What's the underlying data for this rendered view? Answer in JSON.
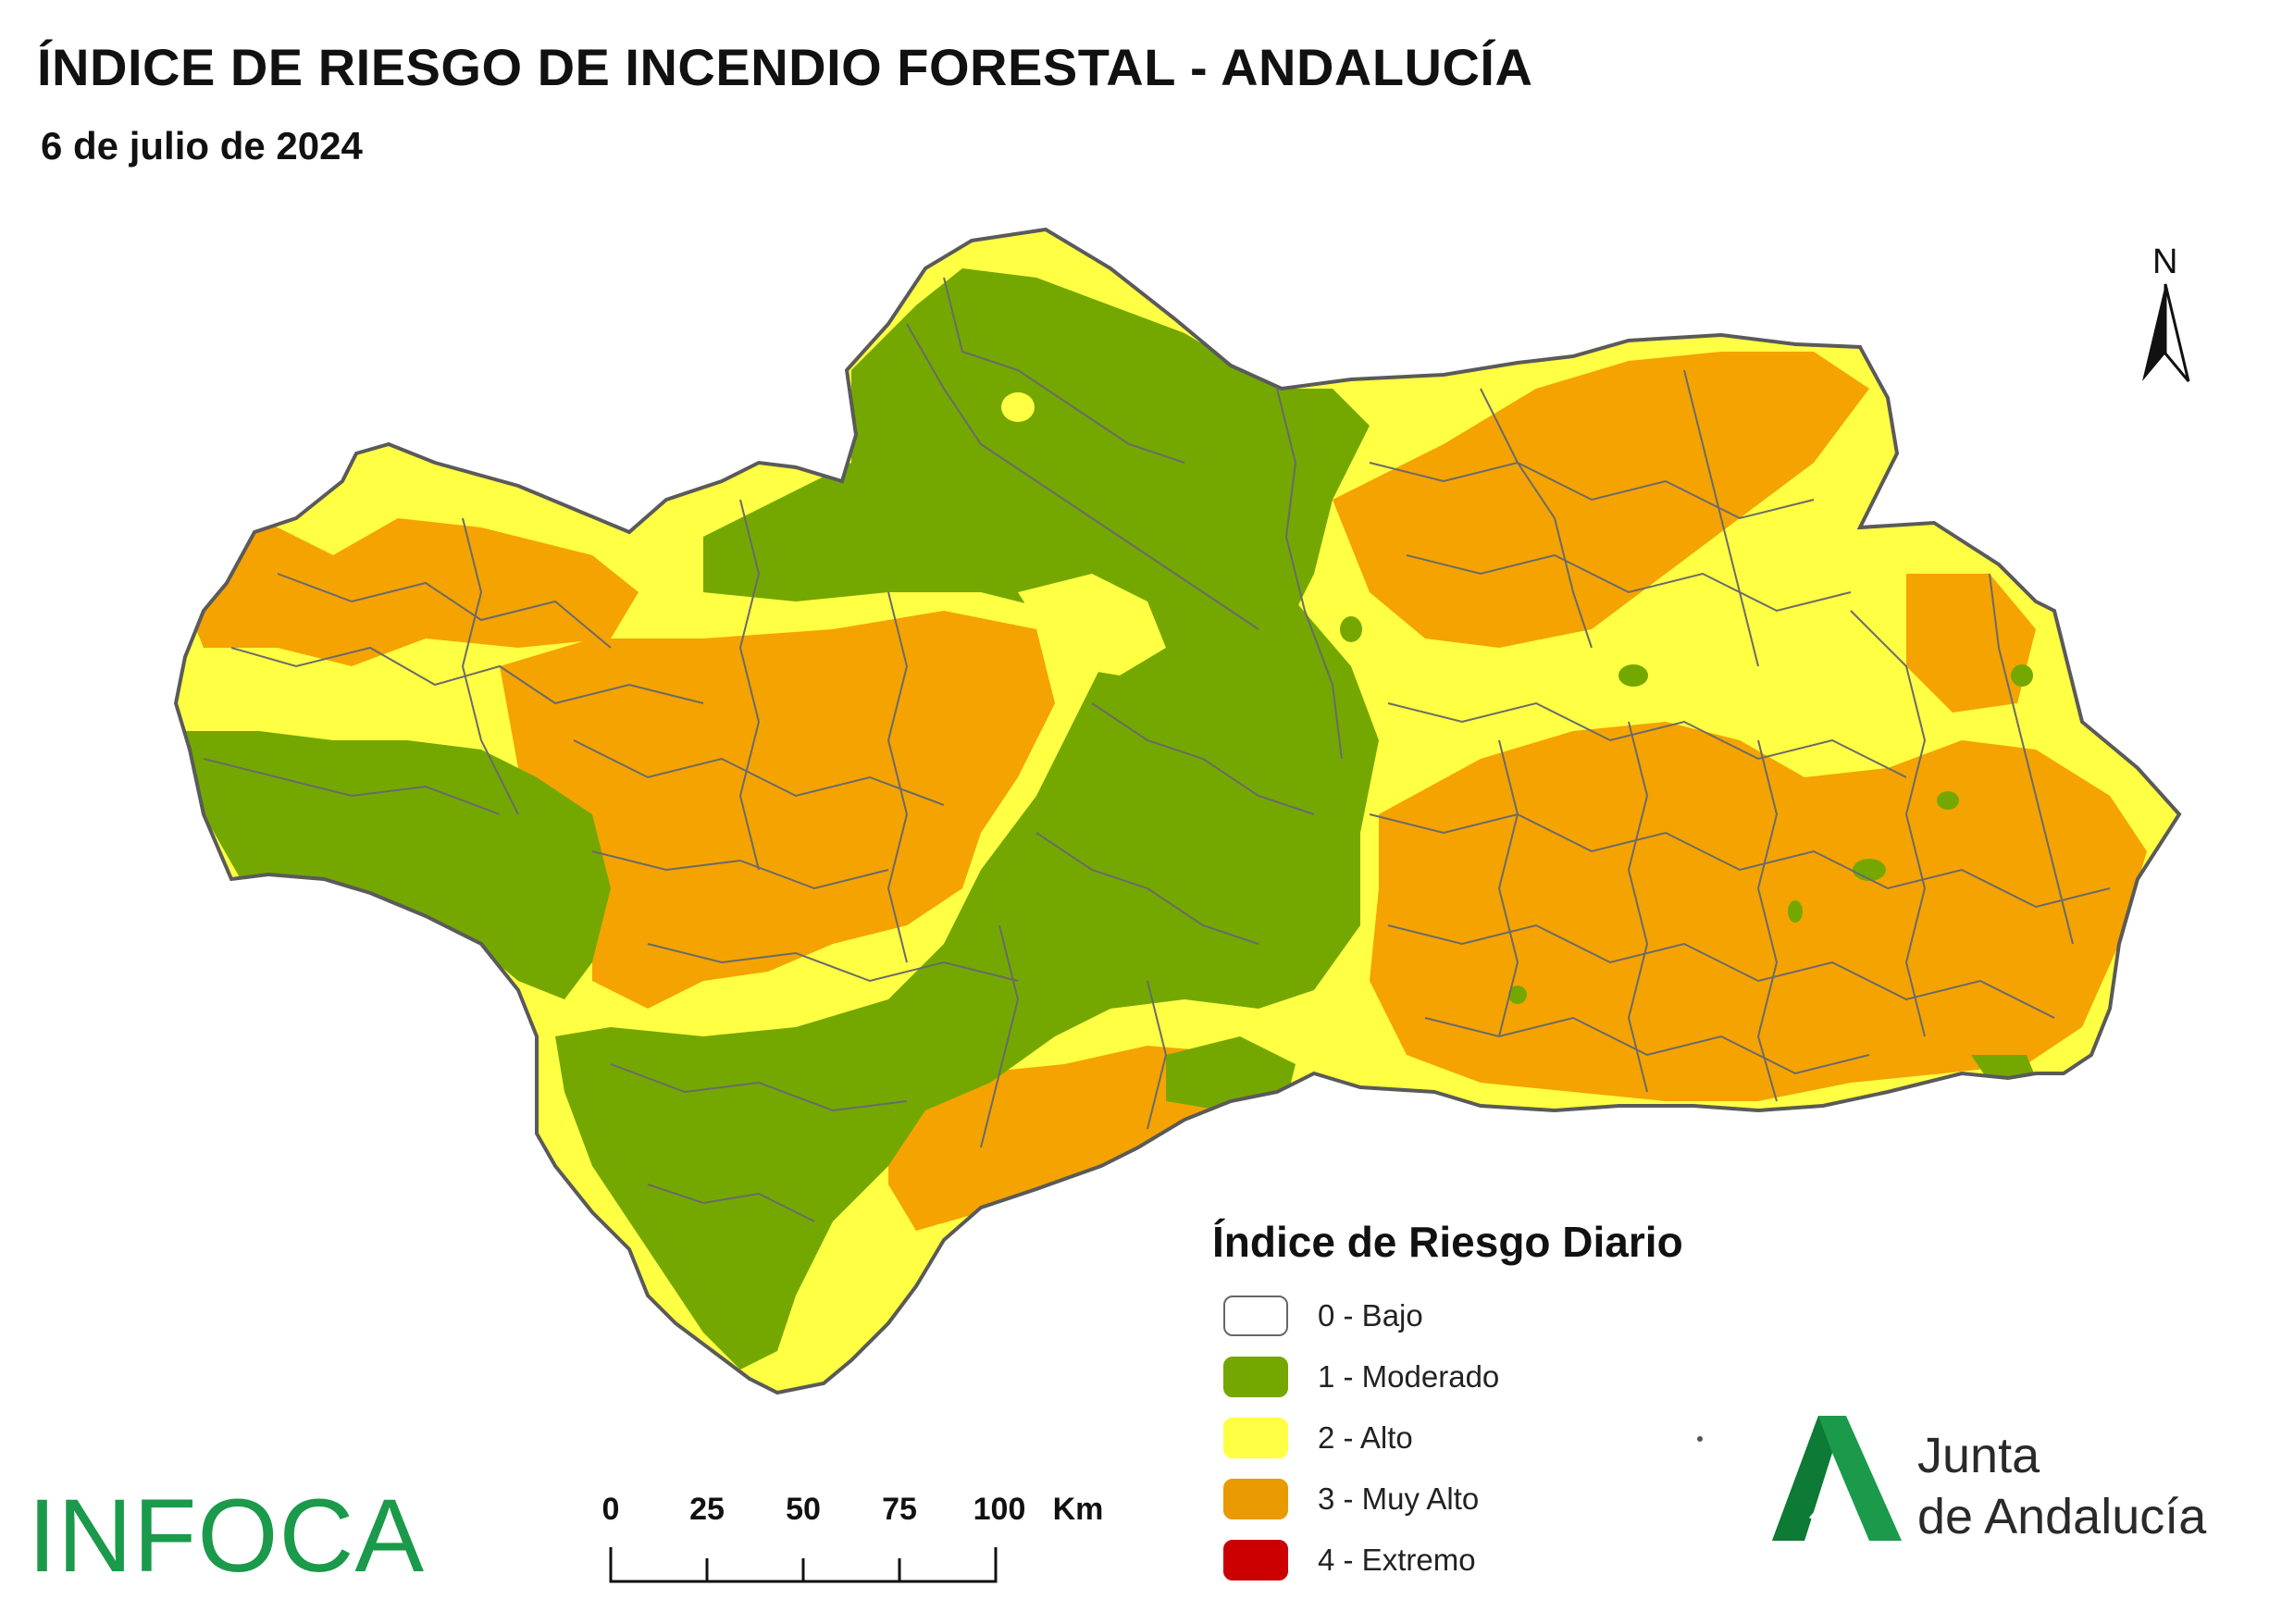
{
  "header": {
    "title": "ÍNDICE DE RIESGO DE INCENDIO FORESTAL - ANDALUCÍA",
    "date": "6 de julio de 2024"
  },
  "north_arrow": {
    "letter": "N"
  },
  "legend": {
    "title": "Índice de Riesgo Diario",
    "items": [
      {
        "label": "0 - Bajo",
        "color": "#ffffff"
      },
      {
        "label": "1 - Moderado",
        "color": "#74a800"
      },
      {
        "label": "2 - Alto",
        "color": "#ffff44"
      },
      {
        "label": "3 - Muy Alto",
        "color": "#f5a300"
      },
      {
        "label": "4 - Extremo",
        "color": "#cc0000"
      }
    ]
  },
  "scale_bar": {
    "ticks": [
      "0",
      "25",
      "50",
      "75",
      "100"
    ],
    "unit": "Km"
  },
  "branding": {
    "infoca": "INFOCA",
    "junta_line1": "Junta",
    "junta_line2": "de Andalucía"
  },
  "colors": {
    "moderado": "#74a800",
    "alto": "#ffff44",
    "muy_alto": "#f5a300",
    "border": "#666666",
    "brand_green": "#1a9a4a"
  }
}
